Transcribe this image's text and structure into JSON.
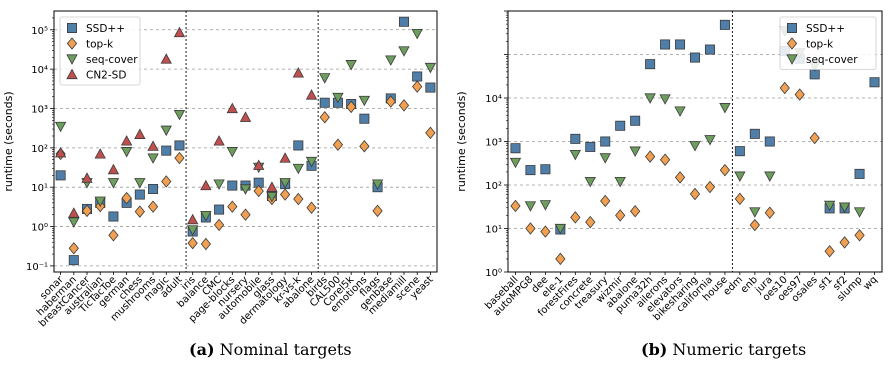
{
  "captions": [
    {
      "label": "(a)",
      "text": "Nominal targets"
    },
    {
      "label": "(b)",
      "text": "Numeric targets"
    }
  ],
  "chart_data": [
    {
      "type": "scatter",
      "ylabel": "runtime (seconds)",
      "yscale": "log",
      "ylim": [
        0.07,
        300000
      ],
      "yticks": [
        "10⁻¹",
        "10⁰",
        "10¹",
        "10²",
        "10³",
        "10⁴",
        "10⁵"
      ],
      "grid": "horizontal dashed",
      "legend_position": "top-left",
      "categories": [
        "sonar",
        "haberman",
        "breastCancer",
        "australian",
        "TicTacToe",
        "german",
        "chess",
        "mushrooms",
        "magic",
        "adult",
        "iris",
        "balance",
        "CMC",
        "page-blocks",
        "nursery",
        "automobile",
        "glass",
        "dermatology",
        "kr-vs-k",
        "abalone",
        "birds",
        "CAL500",
        "Corel5k",
        "emotions",
        "flags",
        "genbase",
        "mediamill",
        "scene",
        "yeast"
      ],
      "separators_after": [
        "adult",
        "abalone"
      ],
      "series": [
        {
          "name": "SSD++",
          "marker": "square",
          "color": "#4f7fa8",
          "values": [
            20,
            0.14,
            2.8,
            4,
            1.8,
            4,
            6.5,
            9,
            85,
            115,
            0.75,
            1.7,
            2.7,
            11,
            11,
            13,
            6,
            12,
            115,
            35,
            1400,
            1400,
            1300,
            550,
            10,
            1800,
            160000,
            6500,
            3400
          ]
        },
        {
          "name": "top-k",
          "marker": "diamond",
          "color": "#f0a050",
          "values": [
            70,
            0.28,
            2.5,
            3.3,
            0.6,
            5.3,
            2.4,
            3.2,
            14,
            55,
            0.38,
            0.36,
            1.1,
            3.2,
            2,
            8,
            5,
            6.5,
            5,
            3,
            600,
            120,
            1100,
            110,
            2.5,
            1500,
            1200,
            3600,
            240
          ]
        },
        {
          "name": "seq-cover",
          "marker": "triangle-down",
          "color": "#6d9e5e",
          "values": [
            350,
            1.3,
            13,
            4.4,
            13,
            80,
            13,
            55,
            280,
            700,
            0.82,
            1.9,
            12,
            80,
            9,
            32,
            5.8,
            13,
            30,
            45,
            6000,
            1900,
            13000,
            1600,
            12,
            17000,
            29000,
            80000,
            11000
          ]
        },
        {
          "name": "CN2-SD",
          "marker": "triangle-up",
          "color": "#c0504e",
          "values": [
            75,
            2.2,
            17,
            70,
            28,
            150,
            220,
            110,
            18000,
            85000,
            1.5,
            11,
            150,
            1000,
            600,
            36,
            10,
            55,
            8000,
            2200,
            null,
            null,
            null,
            null,
            null,
            null,
            null,
            null,
            null
          ]
        }
      ]
    },
    {
      "type": "scatter",
      "ylabel": "runtime (seconds)",
      "yscale": "log",
      "ylim": [
        0.1,
        100000
      ],
      "yticks": [
        "10⁰",
        "10¹",
        "10²",
        "10³",
        "10⁴"
      ],
      "grid": "horizontal dashed",
      "legend_position": "top-right",
      "categories": [
        "baseball",
        "autoMPG8",
        "dee",
        "ele-1",
        "forestFires",
        "concrete",
        "treasury",
        "wizmir",
        "abalone",
        "puma32h",
        "ailerons",
        "elevators",
        "bikesharing",
        "california",
        "house",
        "edm",
        "enb",
        "jura",
        "oes10",
        "oes97",
        "osales",
        "sf1",
        "sf2",
        "slump",
        "wq"
      ],
      "separators_after": [
        "house"
      ],
      "series": [
        {
          "name": "SSD++",
          "marker": "square",
          "color": "#4f7fa8",
          "values": [
            70,
            22,
            23,
            0.95,
            115,
            75,
            100,
            230,
            300,
            6000,
            17000,
            17000,
            8500,
            13000,
            48000,
            60,
            150,
            100,
            12000,
            8000,
            3500,
            2.9,
            2.9,
            18,
            2300
          ]
        },
        {
          "name": "top-k",
          "marker": "diamond",
          "color": "#f0a050",
          "values": [
            3.3,
            1,
            0.85,
            0.2,
            1.8,
            1.4,
            4.3,
            2,
            2.5,
            45,
            38,
            15,
            6.2,
            9,
            22,
            4.8,
            1.2,
            2.3,
            1700,
            1200,
            120,
            0.3,
            0.48,
            0.7,
            null
          ]
        },
        {
          "name": "seq-cover",
          "marker": "triangle-down",
          "color": "#6d9e5e",
          "values": [
            33,
            3.3,
            3.5,
            1,
            50,
            12,
            42,
            12,
            60,
            1000,
            950,
            500,
            80,
            110,
            600,
            16,
            2.4,
            16,
            35000,
            11000,
            5500,
            3.4,
            3.1,
            2.4,
            null
          ]
        }
      ]
    }
  ]
}
